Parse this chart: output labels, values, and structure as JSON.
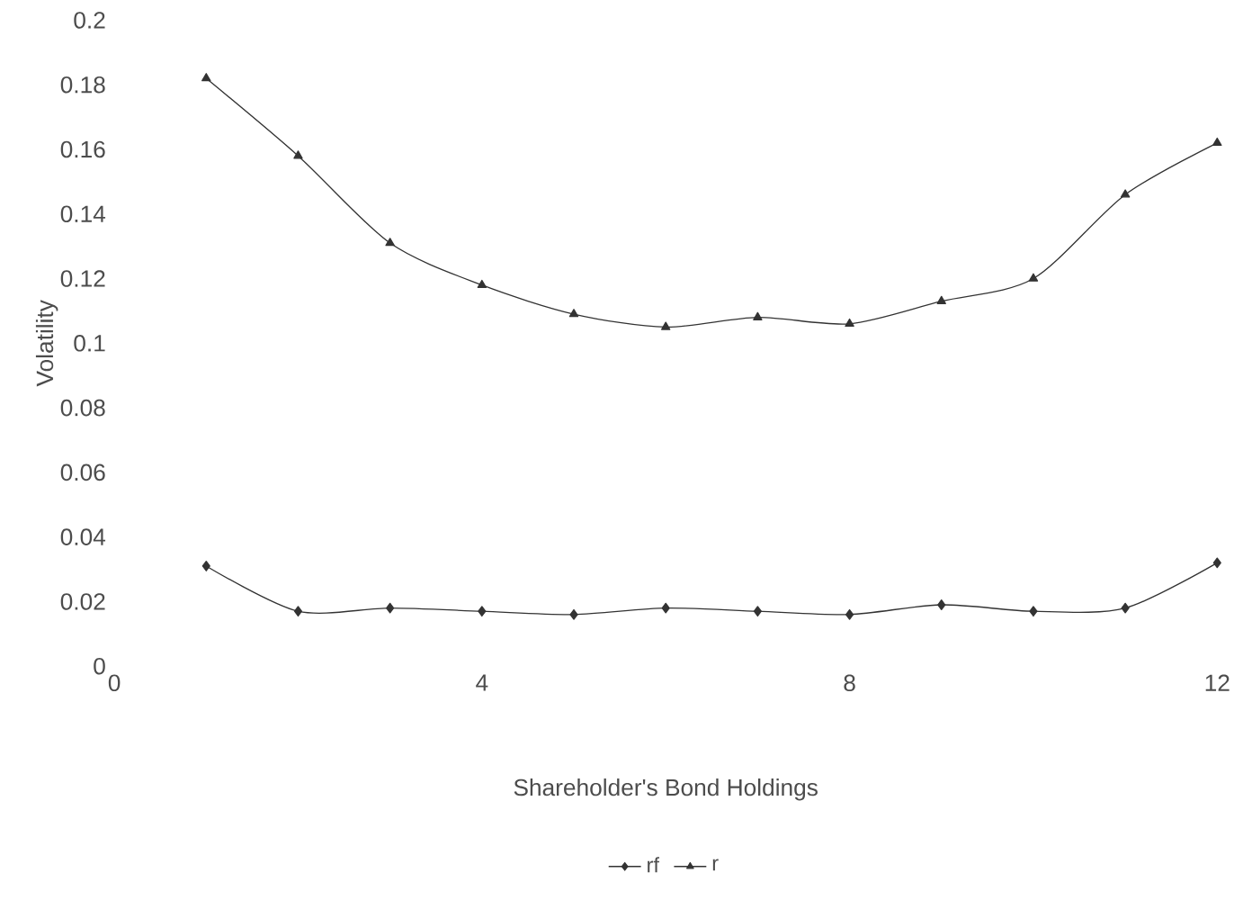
{
  "chart_data": {
    "type": "line",
    "xlabel": "Shareholder's Bond Holdings",
    "ylabel": "Volatility",
    "x": [
      1,
      2,
      3,
      4,
      5,
      6,
      7,
      8,
      9,
      10,
      11,
      12
    ],
    "series": [
      {
        "name": "rf",
        "color": "#333333",
        "marker": "diamond",
        "values": [
          0.031,
          0.017,
          0.018,
          0.017,
          0.016,
          0.018,
          0.017,
          0.016,
          0.019,
          0.017,
          0.018,
          0.032
        ]
      },
      {
        "name": "r",
        "color": "#333333",
        "marker": "triangle",
        "values": [
          0.182,
          0.158,
          0.131,
          0.118,
          0.109,
          0.105,
          0.108,
          0.106,
          0.113,
          0.12,
          0.146,
          0.162
        ]
      }
    ],
    "xlim": [
      0,
      12
    ],
    "xticks": [
      0,
      4,
      8,
      12
    ],
    "ylim": [
      0,
      0.2
    ],
    "yticks": [
      0,
      0.02,
      0.04,
      0.06,
      0.08,
      0.1,
      0.12,
      0.14,
      0.16,
      0.18,
      0.2
    ],
    "grid": false,
    "legend": "bottom",
    "line_style": "solid"
  }
}
